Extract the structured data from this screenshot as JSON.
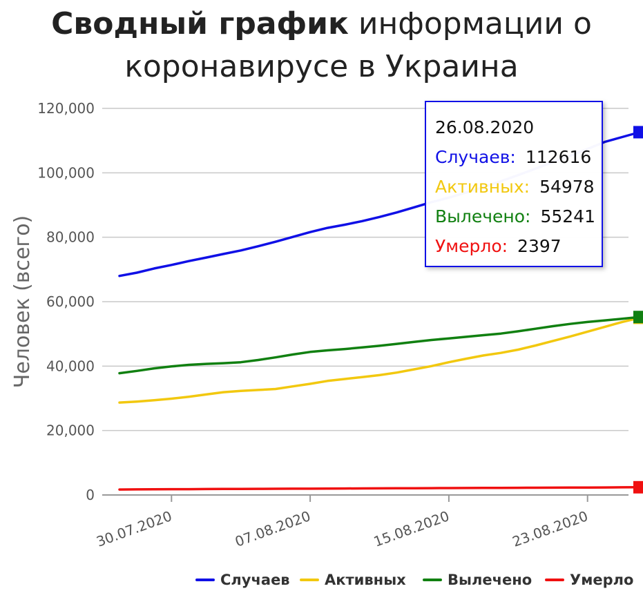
{
  "chart_data": {
    "type": "line",
    "title_bold": "Сводный график",
    "title_rest_line1": "информации о",
    "title_line2": "коронавирусе в Украина",
    "ylabel": "Человек (всего)",
    "xlabel": "",
    "ylim": [
      0,
      120000
    ],
    "yticks": [
      0,
      20000,
      40000,
      60000,
      80000,
      100000,
      120000
    ],
    "ytick_labels": [
      "0",
      "20,000",
      "40,000",
      "60,000",
      "80,000",
      "100,000",
      "120,000"
    ],
    "x": [
      "27.07.2020",
      "28.07.2020",
      "29.07.2020",
      "30.07.2020",
      "31.07.2020",
      "01.08.2020",
      "02.08.2020",
      "03.08.2020",
      "04.08.2020",
      "05.08.2020",
      "06.08.2020",
      "07.08.2020",
      "08.08.2020",
      "09.08.2020",
      "10.08.2020",
      "11.08.2020",
      "12.08.2020",
      "13.08.2020",
      "14.08.2020",
      "15.08.2020",
      "16.08.2020",
      "17.08.2020",
      "18.08.2020",
      "19.08.2020",
      "20.08.2020",
      "21.08.2020",
      "22.08.2020",
      "23.08.2020",
      "24.08.2020",
      "25.08.2020",
      "26.08.2020"
    ],
    "xtick_labels": [
      "30.07.2020",
      "07.08.2020",
      "15.08.2020",
      "23.08.2020"
    ],
    "xtick_indices": [
      3,
      11,
      19,
      27
    ],
    "grid": true,
    "legend_position": "bottom-right",
    "series": [
      {
        "name": "Случаев",
        "color": "#1010e6",
        "values": [
          68000,
          69000,
          70300,
          71400,
          72600,
          73700,
          74800,
          75900,
          77200,
          78600,
          80100,
          81600,
          82900,
          83900,
          85000,
          86300,
          87700,
          89300,
          90900,
          92300,
          93900,
          95600,
          97400,
          99300,
          101300,
          103300,
          105300,
          107400,
          109600,
          111100,
          112616
        ]
      },
      {
        "name": "Активных",
        "color": "#f2c80f",
        "values": [
          28700,
          29000,
          29400,
          29900,
          30500,
          31200,
          31900,
          32300,
          32600,
          32900,
          33700,
          34500,
          35400,
          36000,
          36600,
          37200,
          38000,
          39000,
          40000,
          41200,
          42300,
          43300,
          44100,
          45100,
          46400,
          47800,
          49200,
          50700,
          52200,
          53700,
          54978
        ]
      },
      {
        "name": "Вылечено",
        "color": "#118011",
        "values": [
          37800,
          38500,
          39300,
          39900,
          40400,
          40700,
          40900,
          41200,
          41900,
          42700,
          43600,
          44400,
          44900,
          45300,
          45800,
          46300,
          46900,
          47500,
          48100,
          48600,
          49100,
          49600,
          50100,
          50800,
          51600,
          52400,
          53100,
          53700,
          54200,
          54700,
          55241
        ]
      },
      {
        "name": "Умерло",
        "color": "#f01010",
        "values": [
          1700,
          1730,
          1760,
          1790,
          1810,
          1840,
          1860,
          1880,
          1900,
          1920,
          1940,
          1960,
          1990,
          2010,
          2030,
          2050,
          2080,
          2100,
          2120,
          2150,
          2170,
          2190,
          2210,
          2230,
          2260,
          2280,
          2300,
          2320,
          2340,
          2370,
          2397
        ]
      }
    ]
  },
  "tooltip": {
    "date": "26.08.2020",
    "rows": [
      {
        "label": "Случаев:",
        "value": "112616",
        "color": "#1010e6"
      },
      {
        "label": "Активных:",
        "value": "54978",
        "color": "#f2c80f"
      },
      {
        "label": "Вылечено:",
        "value": "55241",
        "color": "#118011"
      },
      {
        "label": "Умерло:",
        "value": "2397",
        "color": "#f01010"
      }
    ]
  },
  "legend": {
    "items": [
      "Случаев",
      "Активных",
      "Вылечено",
      "Умерло"
    ]
  }
}
